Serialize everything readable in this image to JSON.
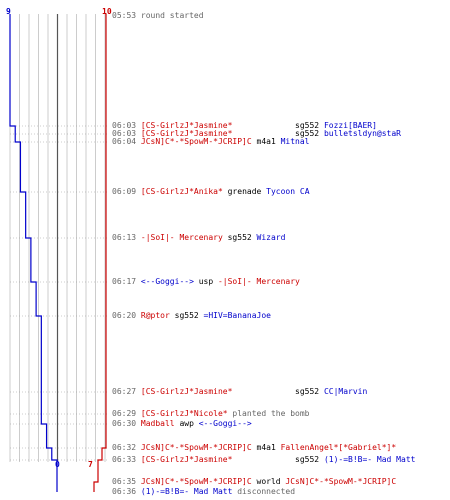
{
  "scoreboard": {
    "left_team_start": "9",
    "right_team_start": "10",
    "left_team_end": "0",
    "right_team_end": "7",
    "colors": {
      "left_team": "#0000cc",
      "right_team": "#cc0000",
      "grid": "#aaaaaa",
      "text": "#666666"
    }
  },
  "chart_data": {
    "type": "line",
    "series": [
      {
        "name": "",
        "team": "blue",
        "x": [
          "05:53",
          "06:03",
          "06:04",
          "06:09",
          "06:13",
          "06:17",
          "06:20",
          "06:27",
          "06:29",
          "06:30",
          "06:32",
          "06:33",
          "06:35",
          "06:36"
        ],
        "values": [
          9,
          9,
          8,
          7,
          6,
          5,
          4,
          3,
          3,
          3,
          2,
          1,
          0,
          0
        ]
      },
      {
        "name": "",
        "team": "red",
        "x": [
          "05:53",
          "06:03",
          "06:04",
          "06:09",
          "06:13",
          "06:17",
          "06:20",
          "06:27",
          "06:29",
          "06:30",
          "06:32",
          "06:33",
          "06:35",
          "06:36"
        ],
        "values": [
          10,
          10,
          10,
          10,
          10,
          10,
          10,
          10,
          10,
          10,
          10,
          9,
          8,
          7
        ]
      }
    ],
    "ylim": [
      0,
      10
    ]
  },
  "events": [
    {
      "time": "05:53",
      "parts": [
        {
          "text": "round started",
          "color": "grey"
        }
      ]
    },
    {
      "time": "06:03",
      "parts": [
        {
          "text": "[CS-GirlzJ*Jasmine*",
          "color": "red"
        },
        {
          "text": "             sg552 ",
          "color": "black"
        },
        {
          "text": "Fozzi[BAER]",
          "color": "blue"
        }
      ]
    },
    {
      "time": "06:03",
      "parts": [
        {
          "text": "[CS-GirlzJ*Jasmine*",
          "color": "red"
        },
        {
          "text": "             sg552 ",
          "color": "black"
        },
        {
          "text": "bulletsldyn@staR",
          "color": "blue"
        }
      ]
    },
    {
      "time": "06:04",
      "parts": [
        {
          "text": "JCsN]C*-*SpowM-*JCRIP]C",
          "color": "red"
        },
        {
          "text": " m4a1 ",
          "color": "black"
        },
        {
          "text": "Mitnal",
          "color": "blue"
        }
      ]
    },
    {
      "time": "06:09",
      "parts": [
        {
          "text": "[CS-GirlzJ*Anika*",
          "color": "red"
        },
        {
          "text": " grenade ",
          "color": "black"
        },
        {
          "text": "Tycoon CA",
          "color": "blue"
        }
      ]
    },
    {
      "time": "06:13",
      "parts": [
        {
          "text": "-|SoI|- Mercenary",
          "color": "red"
        },
        {
          "text": " sg552 ",
          "color": "black"
        },
        {
          "text": "Wizard",
          "color": "blue"
        }
      ]
    },
    {
      "time": "06:17",
      "parts": [
        {
          "text": "<--Goggi-->",
          "color": "blue"
        },
        {
          "text": " usp ",
          "color": "black"
        },
        {
          "text": "-|SoI|- Mercenary",
          "color": "red"
        }
      ]
    },
    {
      "time": "06:20",
      "parts": [
        {
          "text": "R@ptor",
          "color": "red"
        },
        {
          "text": " sg552 ",
          "color": "black"
        },
        {
          "text": "=HIV=BananaJoe",
          "color": "blue"
        }
      ]
    },
    {
      "time": "06:27",
      "parts": [
        {
          "text": "[CS-GirlzJ*Jasmine*",
          "color": "red"
        },
        {
          "text": "             sg552 ",
          "color": "black"
        },
        {
          "text": "CC|Marvin",
          "color": "blue"
        }
      ]
    },
    {
      "time": "06:29",
      "parts": [
        {
          "text": "[CS-GirlzJ*Nicole*",
          "color": "red"
        },
        {
          "text": " planted the bomb",
          "color": "grey"
        }
      ]
    },
    {
      "time": "06:30",
      "parts": [
        {
          "text": "Madball",
          "color": "red"
        },
        {
          "text": " awp ",
          "color": "black"
        },
        {
          "text": "<--Goggi-->",
          "color": "blue"
        }
      ]
    },
    {
      "time": "06:32",
      "parts": [
        {
          "text": "JCsN]C*-*SpowM-*JCRIP]C",
          "color": "red"
        },
        {
          "text": " m4a1 ",
          "color": "black"
        },
        {
          "text": "FallenAngel*[*Gabriel*]*",
          "color": "red"
        }
      ]
    },
    {
      "time": "06:33",
      "parts": [
        {
          "text": "[CS-GirlzJ*Jasmine*",
          "color": "red"
        },
        {
          "text": "             sg552 ",
          "color": "black"
        },
        {
          "text": "(1)-=B!B=- Mad Matt",
          "color": "blue"
        }
      ]
    },
    {
      "time": "06:35",
      "parts": [
        {
          "text": "JCsN]C*-*SpowM-*JCRIP]C",
          "color": "red"
        },
        {
          "text": " world ",
          "color": "black"
        },
        {
          "text": "JCsN]C*-*SpowM-*JCRIP]C",
          "color": "red"
        }
      ]
    },
    {
      "time": "06:36",
      "parts": [
        {
          "text": "(1)-=B!B=- Mad Matt",
          "color": "blue"
        },
        {
          "text": " disconnected",
          "color": "grey"
        }
      ]
    }
  ]
}
